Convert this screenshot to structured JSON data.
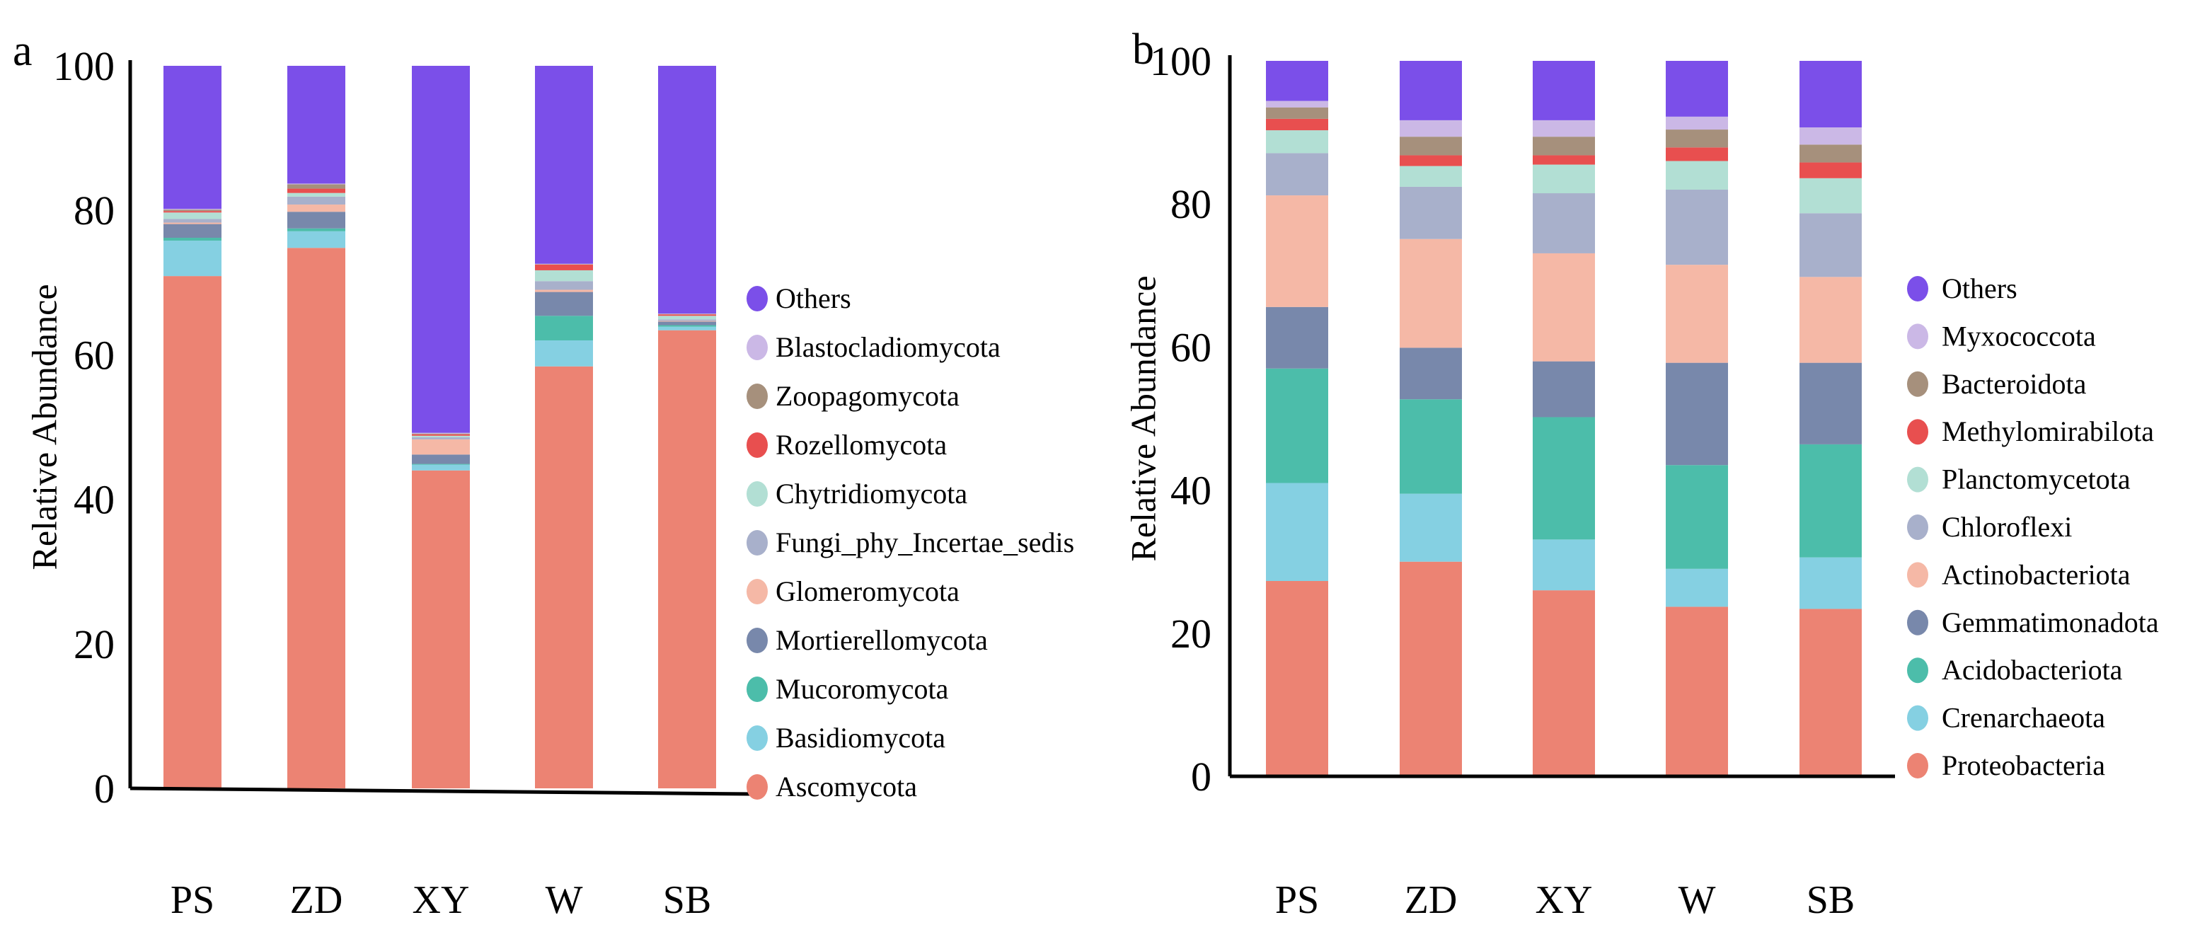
{
  "chart_data": [
    {
      "type": "bar",
      "stacked": true,
      "panel_label": "a",
      "title": "",
      "xlabel": "",
      "ylabel": "Relative Abundance",
      "ylim": [
        0,
        100
      ],
      "yticks": [
        0,
        20,
        40,
        60,
        80,
        100
      ],
      "categories": [
        "PS",
        "ZD",
        "XY",
        "W",
        "SB"
      ],
      "legend_placement": "right",
      "series": [
        {
          "name": "Ascomycota",
          "color": "#ec8373",
          "values": [
            70.9,
            74.8,
            44.0,
            58.4,
            63.4
          ]
        },
        {
          "name": "Basidiomycota",
          "color": "#85d0e2",
          "values": [
            4.9,
            2.3,
            0.8,
            3.6,
            0.5
          ]
        },
        {
          "name": "Mucoromycota",
          "color": "#4cbdaa",
          "values": [
            0.4,
            0.4,
            0.1,
            3.4,
            0.2
          ]
        },
        {
          "name": "Mortierellomycota",
          "color": "#7888ab",
          "values": [
            1.9,
            2.3,
            1.3,
            3.3,
            0.5
          ]
        },
        {
          "name": "Glomeromycota",
          "color": "#f5b8a6",
          "values": [
            0.2,
            1.0,
            2.1,
            0.3,
            0.1
          ]
        },
        {
          "name": "Fungi_phy_Incertae_sedis",
          "color": "#a8b0cb",
          "values": [
            0.5,
            1.1,
            0.3,
            1.2,
            0.2
          ]
        },
        {
          "name": "Chytridiomycota",
          "color": "#b2dfd4",
          "values": [
            0.9,
            0.5,
            0.2,
            1.5,
            0.5
          ]
        },
        {
          "name": "Rozellomycota",
          "color": "#e84f4f",
          "values": [
            0.2,
            0.6,
            0.2,
            0.8,
            0.2
          ]
        },
        {
          "name": "Zoopagomycota",
          "color": "#a6907c",
          "values": [
            0.2,
            0.6,
            0.1,
            0.05,
            0.05
          ]
        },
        {
          "name": "Blastocladiomycota",
          "color": "#cbb8e6",
          "values": [
            0.1,
            0.1,
            0.1,
            0.05,
            0.05
          ]
        },
        {
          "name": "Others",
          "color": "#7b4fe9",
          "values": [
            19.8,
            16.3,
            50.8,
            27.4,
            34.3
          ]
        }
      ]
    },
    {
      "type": "bar",
      "stacked": true,
      "panel_label": "b",
      "title": "",
      "xlabel": "",
      "ylabel": "Relative Abundance",
      "ylim": [
        0,
        100
      ],
      "yticks": [
        0,
        20,
        40,
        60,
        80,
        100
      ],
      "categories": [
        "PS",
        "ZD",
        "XY",
        "W",
        "SB"
      ],
      "legend_placement": "right",
      "series": [
        {
          "name": "Proteobacteria",
          "color": "#ec8373",
          "values": [
            27.3,
            30.0,
            26.0,
            23.7,
            23.4
          ]
        },
        {
          "name": "Crenarchaeota",
          "color": "#85d0e2",
          "values": [
            13.7,
            9.5,
            7.1,
            5.3,
            7.2
          ]
        },
        {
          "name": "Acidobacteriota",
          "color": "#4cbdaa",
          "values": [
            16.0,
            13.2,
            17.1,
            14.5,
            15.8
          ]
        },
        {
          "name": "Gemmatimonadota",
          "color": "#7888ab",
          "values": [
            8.6,
            7.2,
            7.8,
            14.3,
            11.4
          ]
        },
        {
          "name": "Actinobacteriota",
          "color": "#f5b8a6",
          "values": [
            15.6,
            15.2,
            15.1,
            13.7,
            12.0
          ]
        },
        {
          "name": "Chloroflexi",
          "color": "#a8b0cb",
          "values": [
            5.9,
            7.3,
            8.4,
            10.5,
            8.9
          ]
        },
        {
          "name": "Planctomycetota",
          "color": "#b2dfd4",
          "values": [
            3.2,
            2.9,
            4.0,
            4.0,
            4.9
          ]
        },
        {
          "name": "Methylomirabilota",
          "color": "#e84f4f",
          "values": [
            1.6,
            1.5,
            1.3,
            1.9,
            2.2
          ]
        },
        {
          "name": "Bacteroidota",
          "color": "#a6907c",
          "values": [
            1.6,
            2.6,
            2.6,
            2.5,
            2.5
          ]
        },
        {
          "name": "Myxococcota",
          "color": "#cbb8e6",
          "values": [
            0.9,
            2.3,
            2.3,
            1.8,
            2.4
          ]
        },
        {
          "name": "Others",
          "color": "#7b4fe9",
          "values": [
            5.6,
            8.3,
            8.3,
            7.8,
            9.3
          ]
        }
      ]
    }
  ]
}
